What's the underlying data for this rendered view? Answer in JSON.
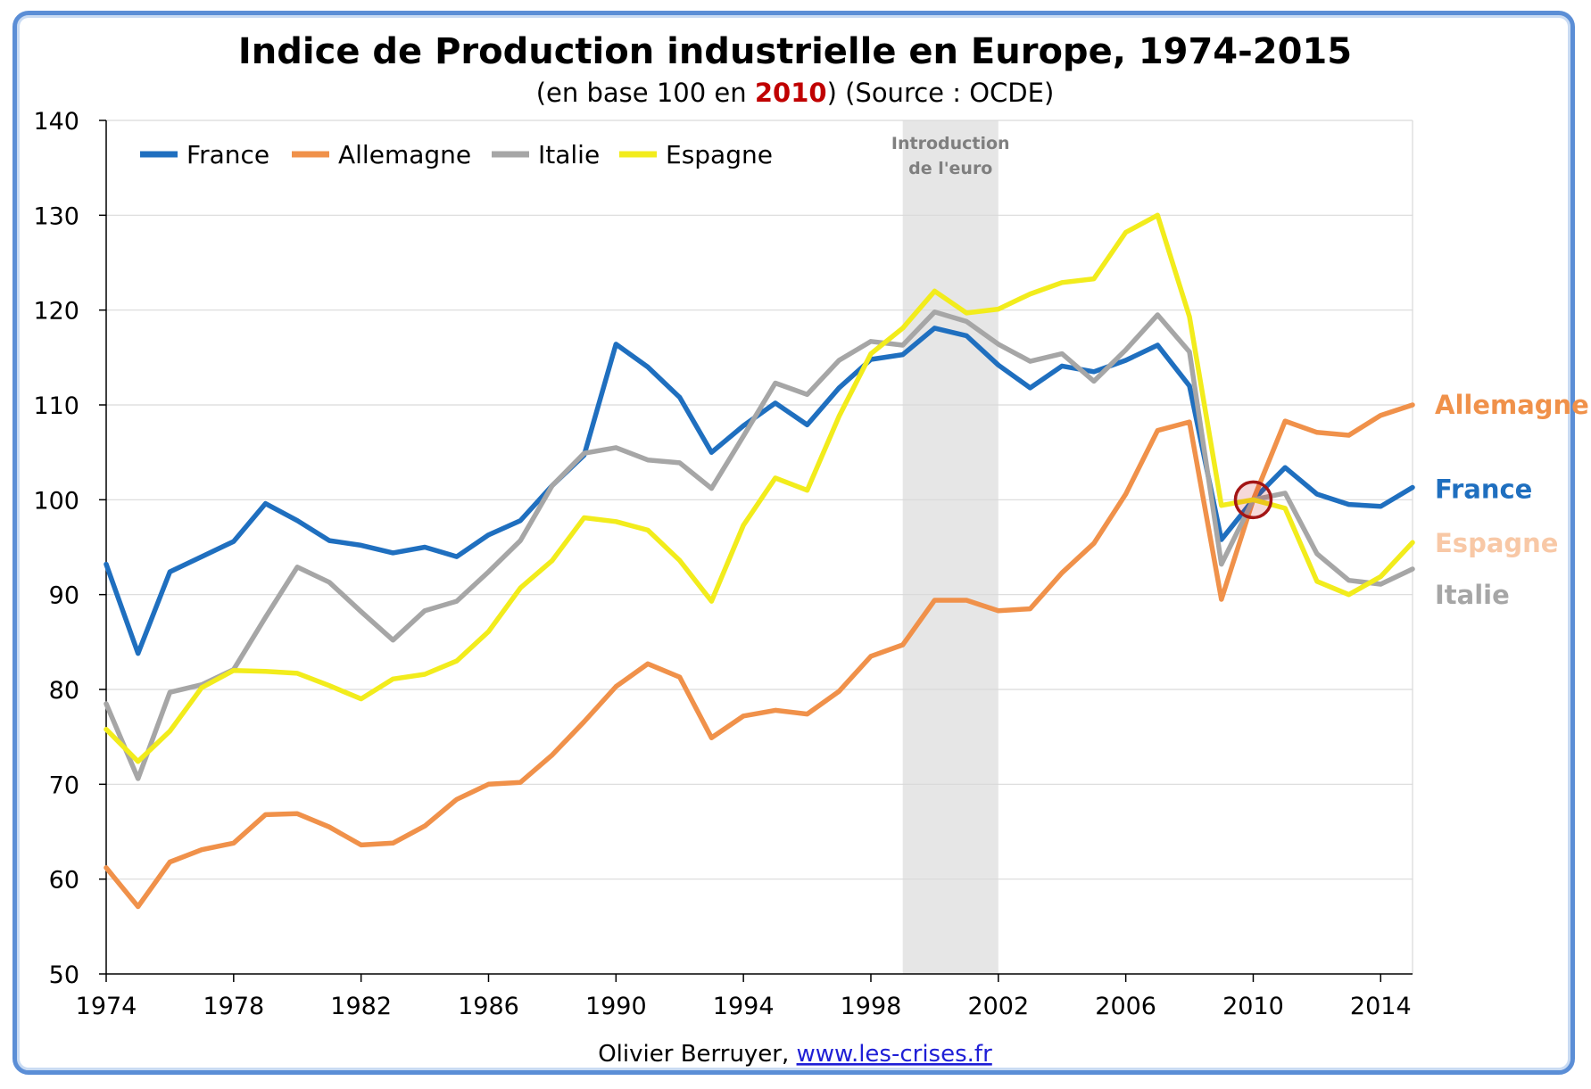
{
  "chart_data": {
    "type": "line",
    "title": "Indice de Production industrielle  en Europe, 1974-2015",
    "subtitle_prefix": "(en base 100 en ",
    "subtitle_highlight": "2010",
    "subtitle_suffix": ") (Source : OCDE)",
    "xlabel": "",
    "ylabel": "",
    "ylim": [
      50,
      140
    ],
    "yticks": [
      50,
      60,
      70,
      80,
      90,
      100,
      110,
      120,
      130,
      140
    ],
    "xlim": [
      1974,
      2015
    ],
    "xticks": [
      1974,
      1978,
      1982,
      1986,
      1990,
      1994,
      1998,
      2002,
      2006,
      2010,
      2014
    ],
    "grid": true,
    "legend_position": "top-left",
    "x": [
      1974,
      1975,
      1976,
      1977,
      1978,
      1979,
      1980,
      1981,
      1982,
      1983,
      1984,
      1985,
      1986,
      1987,
      1988,
      1989,
      1990,
      1991,
      1992,
      1993,
      1994,
      1995,
      1996,
      1997,
      1998,
      1999,
      2000,
      2001,
      2002,
      2003,
      2004,
      2005,
      2006,
      2007,
      2008,
      2009,
      2010,
      2011,
      2012,
      2013,
      2014,
      2015
    ],
    "series": [
      {
        "name": "France",
        "color": "#1f6fbf",
        "values": [
          93.2,
          83.8,
          92.4,
          94.0,
          95.6,
          99.6,
          97.8,
          95.7,
          95.2,
          94.4,
          95.0,
          94.0,
          96.3,
          97.8,
          101.5,
          104.7,
          116.4,
          114.0,
          110.8,
          105.0,
          107.8,
          110.2,
          107.9,
          111.8,
          114.8,
          115.3,
          118.1,
          117.3,
          114.2,
          111.8,
          114.1,
          113.5,
          114.7,
          116.3,
          112.0,
          95.8,
          100.0,
          103.4,
          100.6,
          99.5,
          99.3,
          101.3
        ]
      },
      {
        "name": "Allemagne",
        "color": "#f0914a",
        "values": [
          61.2,
          57.1,
          61.8,
          63.1,
          63.8,
          66.8,
          66.9,
          65.5,
          63.6,
          63.8,
          65.6,
          68.4,
          70.0,
          70.2,
          73.1,
          76.6,
          80.3,
          82.7,
          81.3,
          74.9,
          77.2,
          77.8,
          77.4,
          79.8,
          83.5,
          84.7,
          89.4,
          89.4,
          88.3,
          88.5,
          92.3,
          95.4,
          100.6,
          107.3,
          108.2,
          89.5,
          100.0,
          108.3,
          107.1,
          106.8,
          108.9,
          110.0
        ]
      },
      {
        "name": "Italie",
        "color": "#a6a6a6",
        "values": [
          78.5,
          70.6,
          79.7,
          80.5,
          82.1,
          87.6,
          92.9,
          91.3,
          88.2,
          85.2,
          88.3,
          89.3,
          92.4,
          95.7,
          101.5,
          104.9,
          105.5,
          104.2,
          103.9,
          101.2,
          106.7,
          112.3,
          111.1,
          114.7,
          116.7,
          116.3,
          119.8,
          118.8,
          116.4,
          114.6,
          115.4,
          112.5,
          115.8,
          119.5,
          115.6,
          93.2,
          100.0,
          100.7,
          94.3,
          91.5,
          91.1,
          92.7
        ]
      },
      {
        "name": "Espagne",
        "color": "#f2ec1c",
        "values": [
          75.8,
          72.4,
          75.6,
          80.2,
          82.0,
          81.9,
          81.7,
          80.4,
          79.0,
          81.1,
          81.6,
          83.0,
          86.1,
          90.7,
          93.6,
          98.1,
          97.7,
          96.8,
          93.6,
          89.3,
          97.3,
          102.3,
          101.0,
          108.8,
          115.4,
          118.1,
          122.0,
          119.7,
          120.1,
          121.7,
          122.9,
          123.3,
          128.2,
          130.0,
          119.3,
          99.4,
          100.0,
          99.1,
          91.4,
          90.0,
          91.9,
          95.5
        ]
      }
    ],
    "shaded_band": {
      "x_start": 1999,
      "x_end": 2002,
      "label_lines": [
        "Introduction",
        "de l'euro"
      ]
    },
    "highlight_marker": {
      "x": 2010,
      "y": 100
    },
    "end_labels": [
      {
        "text": "Allemagne",
        "color": "#f0914a",
        "y": 110
      },
      {
        "text": "France",
        "color": "#1f6fbf",
        "y": 101.1
      },
      {
        "text": "Espagne",
        "color": "#f8c8a6",
        "y": 95.4
      },
      {
        "text": "Italie",
        "color": "#a6a6a6",
        "y": 90.7
      }
    ]
  },
  "footer": {
    "author": "Olivier Berruyer, ",
    "link": "www.les-crises.fr"
  }
}
